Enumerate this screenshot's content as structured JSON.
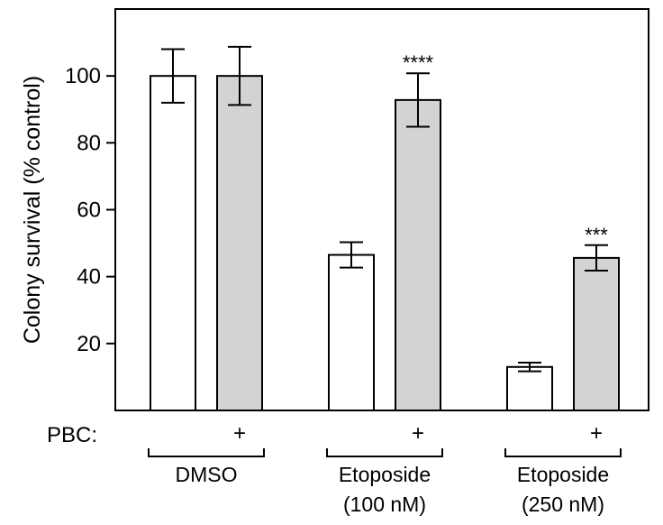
{
  "chart_data": {
    "type": "bar",
    "ylabel": "Colony survival (% control)",
    "ylim": [
      0,
      120
    ],
    "yticks": [
      20,
      40,
      60,
      80,
      100
    ],
    "grid": false,
    "pbc_row_label": "PBC:",
    "pbc_marker": "+",
    "groups": [
      {
        "name": "DMSO",
        "name_line2": ""
      },
      {
        "name": "Etoposide",
        "name_line2": "(100 nM)"
      },
      {
        "name": "Etoposide",
        "name_line2": "(250 nM)"
      }
    ],
    "series": [
      {
        "pbc": "",
        "color": "#ffffff",
        "values": [
          100,
          46.5,
          13
        ],
        "errors": [
          8,
          3.8,
          1.3
        ],
        "significance": [
          "",
          "",
          ""
        ]
      },
      {
        "pbc": "+",
        "color": "#d3d3d3",
        "values": [
          100,
          92.8,
          45.6
        ],
        "errors": [
          8.7,
          8,
          3.8
        ],
        "significance": [
          "",
          "****",
          "***"
        ]
      }
    ]
  }
}
